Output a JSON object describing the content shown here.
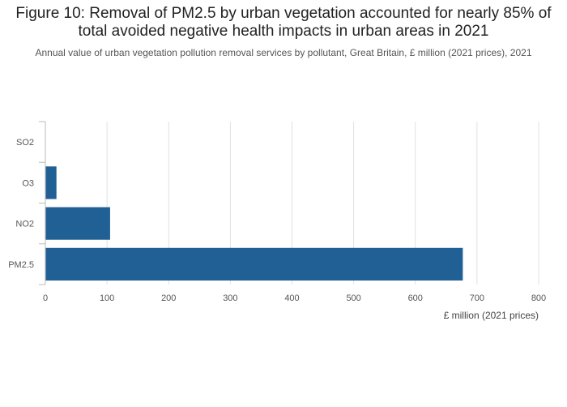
{
  "title": "Figure 10: Removal of PM2.5 by urban vegetation accounted for nearly 85% of total avoided negative health impacts in urban areas in 2021",
  "subtitle": "Annual value of urban vegetation pollution removal services by pollutant, Great Britain, £ million (2021 prices), 2021",
  "colors": {
    "bar": "#206095",
    "grid": "#e0e0e0",
    "axis": "#bbbbbb"
  },
  "chart_data": {
    "type": "bar",
    "orientation": "horizontal",
    "categories": [
      "SO2",
      "O3",
      "NO2",
      "PM2.5"
    ],
    "values": [
      0,
      18,
      105,
      677
    ],
    "title": "Figure 10: Removal of PM2.5 by urban vegetation accounted for nearly 85% of total avoided negative health impacts in urban areas in 2021",
    "xlabel": "£ million (2021 prices)",
    "ylabel": "",
    "xlim": [
      0,
      800
    ],
    "xticks": [
      "0",
      "100",
      "200",
      "300",
      "400",
      "500",
      "600",
      "700",
      "800"
    ],
    "grid": true,
    "legend": "none"
  }
}
